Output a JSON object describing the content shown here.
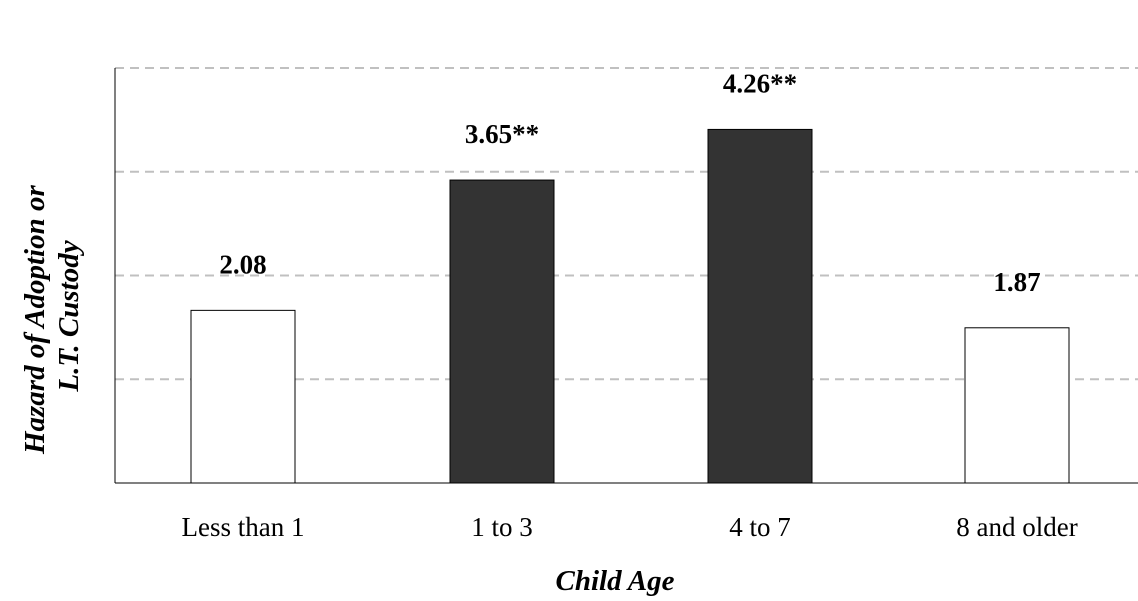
{
  "chart_data": {
    "type": "bar",
    "categories": [
      "Less than 1",
      "1 to 3",
      "4 to 7",
      "8 and older"
    ],
    "values": [
      2.08,
      3.65,
      4.26,
      1.87
    ],
    "value_labels": [
      "2.08",
      "3.65**",
      "4.26**",
      "1.87"
    ],
    "significant": [
      false,
      true,
      true,
      false
    ],
    "title": "",
    "xlabel": "Child Age",
    "ylabel_lines": [
      "Hazard of Adoption or",
      "L.T. Custody"
    ],
    "ylim": [
      0,
      5
    ],
    "gridlines": [
      1.25,
      2.5,
      3.75,
      5
    ],
    "grid": true,
    "legend": "none",
    "colors": {
      "significant_fill": "#333333",
      "nonsignificant_fill": "#ffffff",
      "bar_stroke": "#000000",
      "grid": "#c0c0c0",
      "axis": "#000000"
    }
  }
}
